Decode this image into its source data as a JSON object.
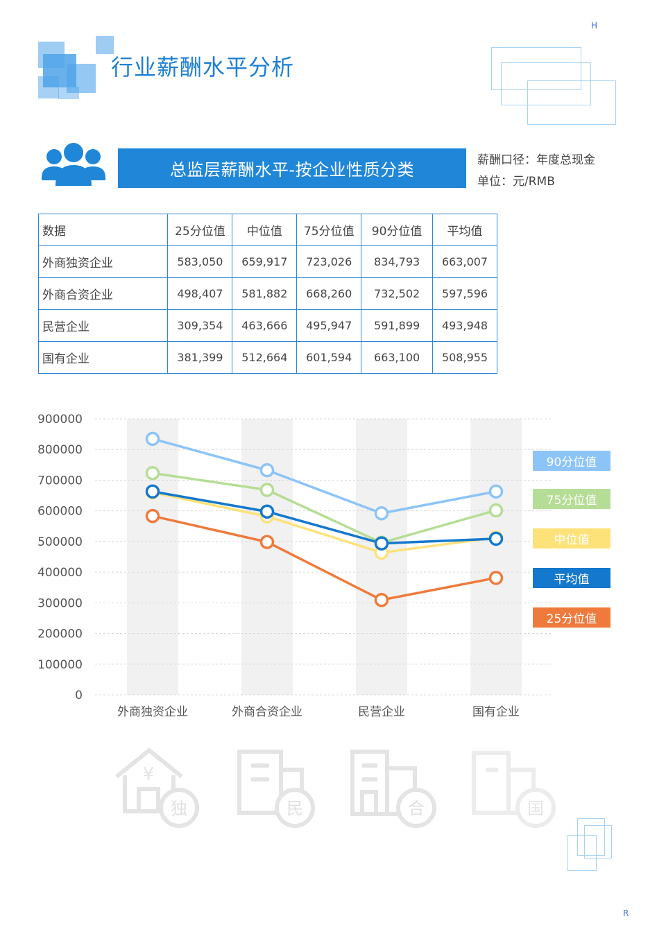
{
  "page": {
    "title": "行业薪酬水平分析",
    "corner_top": "H",
    "corner_bottom": "R"
  },
  "banner": {
    "title": "总监层薪酬水平-按企业性质分类",
    "note_basis": "薪酬口径：年度总现金",
    "note_unit": "单位：元/RMB"
  },
  "table": {
    "headers": [
      "数据",
      "25分位值",
      "中位值",
      "75分位值",
      "90分位值",
      "平均值"
    ],
    "rows": [
      [
        "外商独资企业",
        "583,050",
        "659,917",
        "723,026",
        "834,793",
        "663,007"
      ],
      [
        "外商合资企业",
        "498,407",
        "581,882",
        "668,260",
        "732,502",
        "597,596"
      ],
      [
        "民营企业",
        "309,354",
        "463,666",
        "495,947",
        "591,899",
        "493,948"
      ],
      [
        "国有企业",
        "381,399",
        "512,664",
        "601,594",
        "663,100",
        "508,955"
      ]
    ]
  },
  "chart_data": {
    "type": "line",
    "categories": [
      "外商独资企业",
      "外商合资企业",
      "民营企业",
      "国有企业"
    ],
    "ylim": [
      0,
      900000
    ],
    "yticks": [
      0,
      100000,
      200000,
      300000,
      400000,
      500000,
      600000,
      700000,
      800000,
      900000
    ],
    "series": [
      {
        "name": "90分位值",
        "color": "#8cc4f7",
        "values": [
          834793,
          732502,
          591899,
          663100
        ]
      },
      {
        "name": "75分位值",
        "color": "#b6dd95",
        "values": [
          723026,
          668260,
          495947,
          601594
        ]
      },
      {
        "name": "中位值",
        "color": "#fde27a",
        "values": [
          659917,
          581882,
          463666,
          512664
        ]
      },
      {
        "name": "平均值",
        "color": "#1478cc",
        "values": [
          663007,
          597596,
          493948,
          508955
        ]
      },
      {
        "name": "25分位值",
        "color": "#ef7a3c",
        "values": [
          583050,
          498407,
          309354,
          381399
        ]
      }
    ],
    "legend_position": "right",
    "grid": true
  },
  "bottom_icons": [
    {
      "icon": "house-yen-icon",
      "badge": "独"
    },
    {
      "icon": "building-icon",
      "badge": "民"
    },
    {
      "icon": "buildings-icon",
      "badge": "合"
    },
    {
      "icon": "tower-icon",
      "badge": "国"
    }
  ]
}
